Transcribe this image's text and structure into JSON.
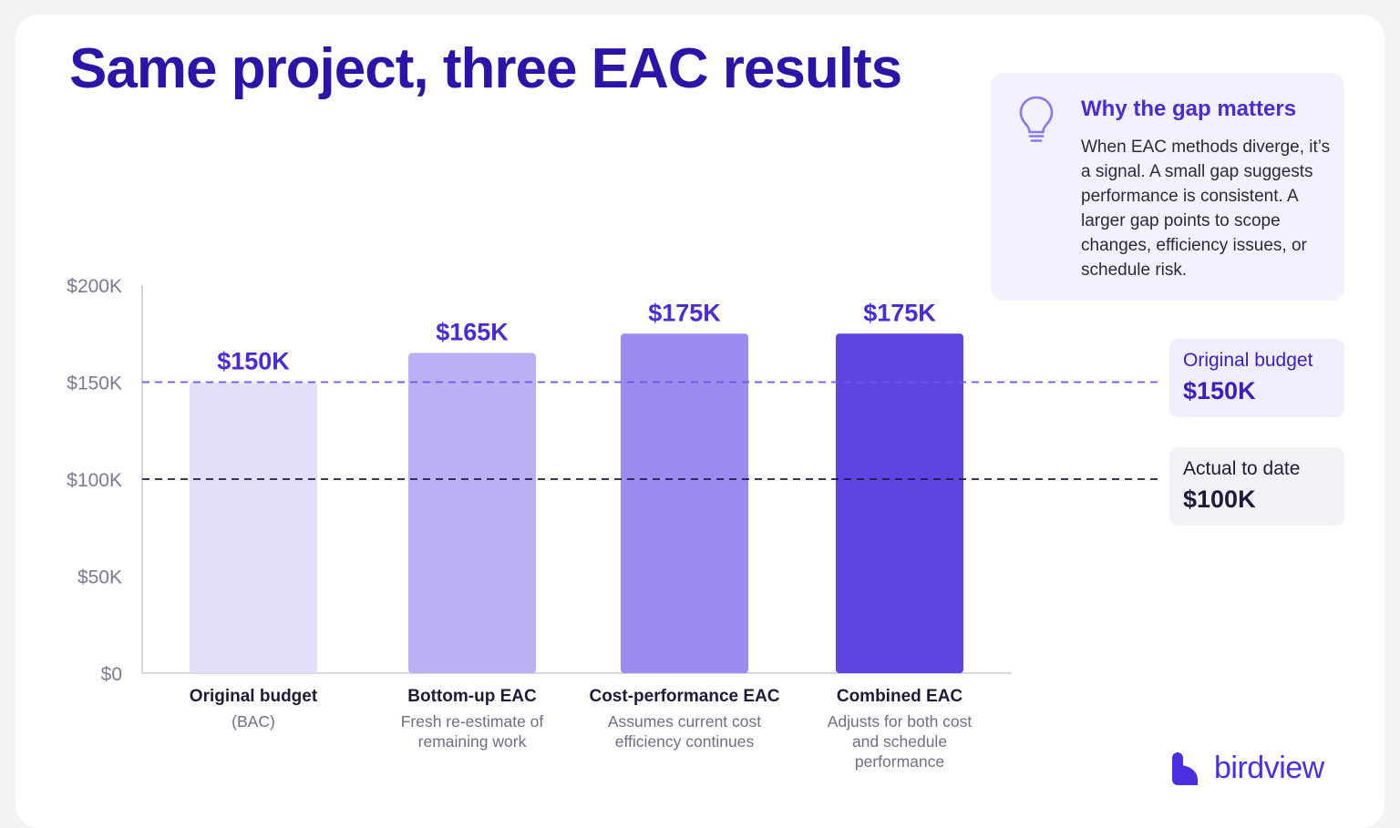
{
  "page": {
    "title": "Same project, three EAC results"
  },
  "info_box": {
    "icon": "lightbulb-icon",
    "heading": "Why the gap matters",
    "body": "When EAC methods diverge, it’s a signal. A small gap suggests performance is consistent. A larger gap points to scope changes, efficiency issues, or schedule risk."
  },
  "reference_labels": {
    "budget": {
      "label": "Original budget",
      "value": "$150K"
    },
    "actual": {
      "label": "Actual to date",
      "value": "$100K"
    }
  },
  "brand": {
    "name": "birdview",
    "color": "#4b2fe0"
  },
  "chart_data": {
    "type": "bar",
    "title": "",
    "xlabel": "",
    "ylabel": "",
    "ylim": [
      0,
      200000
    ],
    "grid": false,
    "y_ticks": [
      {
        "value": 0,
        "label": "$0"
      },
      {
        "value": 50000,
        "label": "$50K"
      },
      {
        "value": 100000,
        "label": "$100K"
      },
      {
        "value": 150000,
        "label": "$150K"
      },
      {
        "value": 200000,
        "label": "$200K"
      }
    ],
    "categories": [
      {
        "name": "Original budget",
        "sub": "(BAC)",
        "value": 150000,
        "value_label": "$150K",
        "color": "#e4defb",
        "label_color": "#4a2bd6"
      },
      {
        "name": "Bottom-up EAC",
        "sub": "Fresh re-estimate of remaining work",
        "value": 165000,
        "value_label": "$165K",
        "color": "#bbaff6",
        "label_color": "#4a2bd6"
      },
      {
        "name": "Cost-performance EAC",
        "sub": "Assumes current cost efficiency continues",
        "value": 175000,
        "value_label": "$175K",
        "color": "#9d8bf0",
        "label_color": "#4a2bd6"
      },
      {
        "name": "Combined EAC",
        "sub": "Adjusts for both cost and schedule performance",
        "value": 175000,
        "value_label": "$175K",
        "color": "#5e45e2",
        "label_color": "#4a2bd6"
      }
    ],
    "reference_lines": [
      {
        "value": 150000,
        "color": "#6b55e6"
      },
      {
        "value": 100000,
        "color": "#1f1d4a"
      }
    ]
  }
}
